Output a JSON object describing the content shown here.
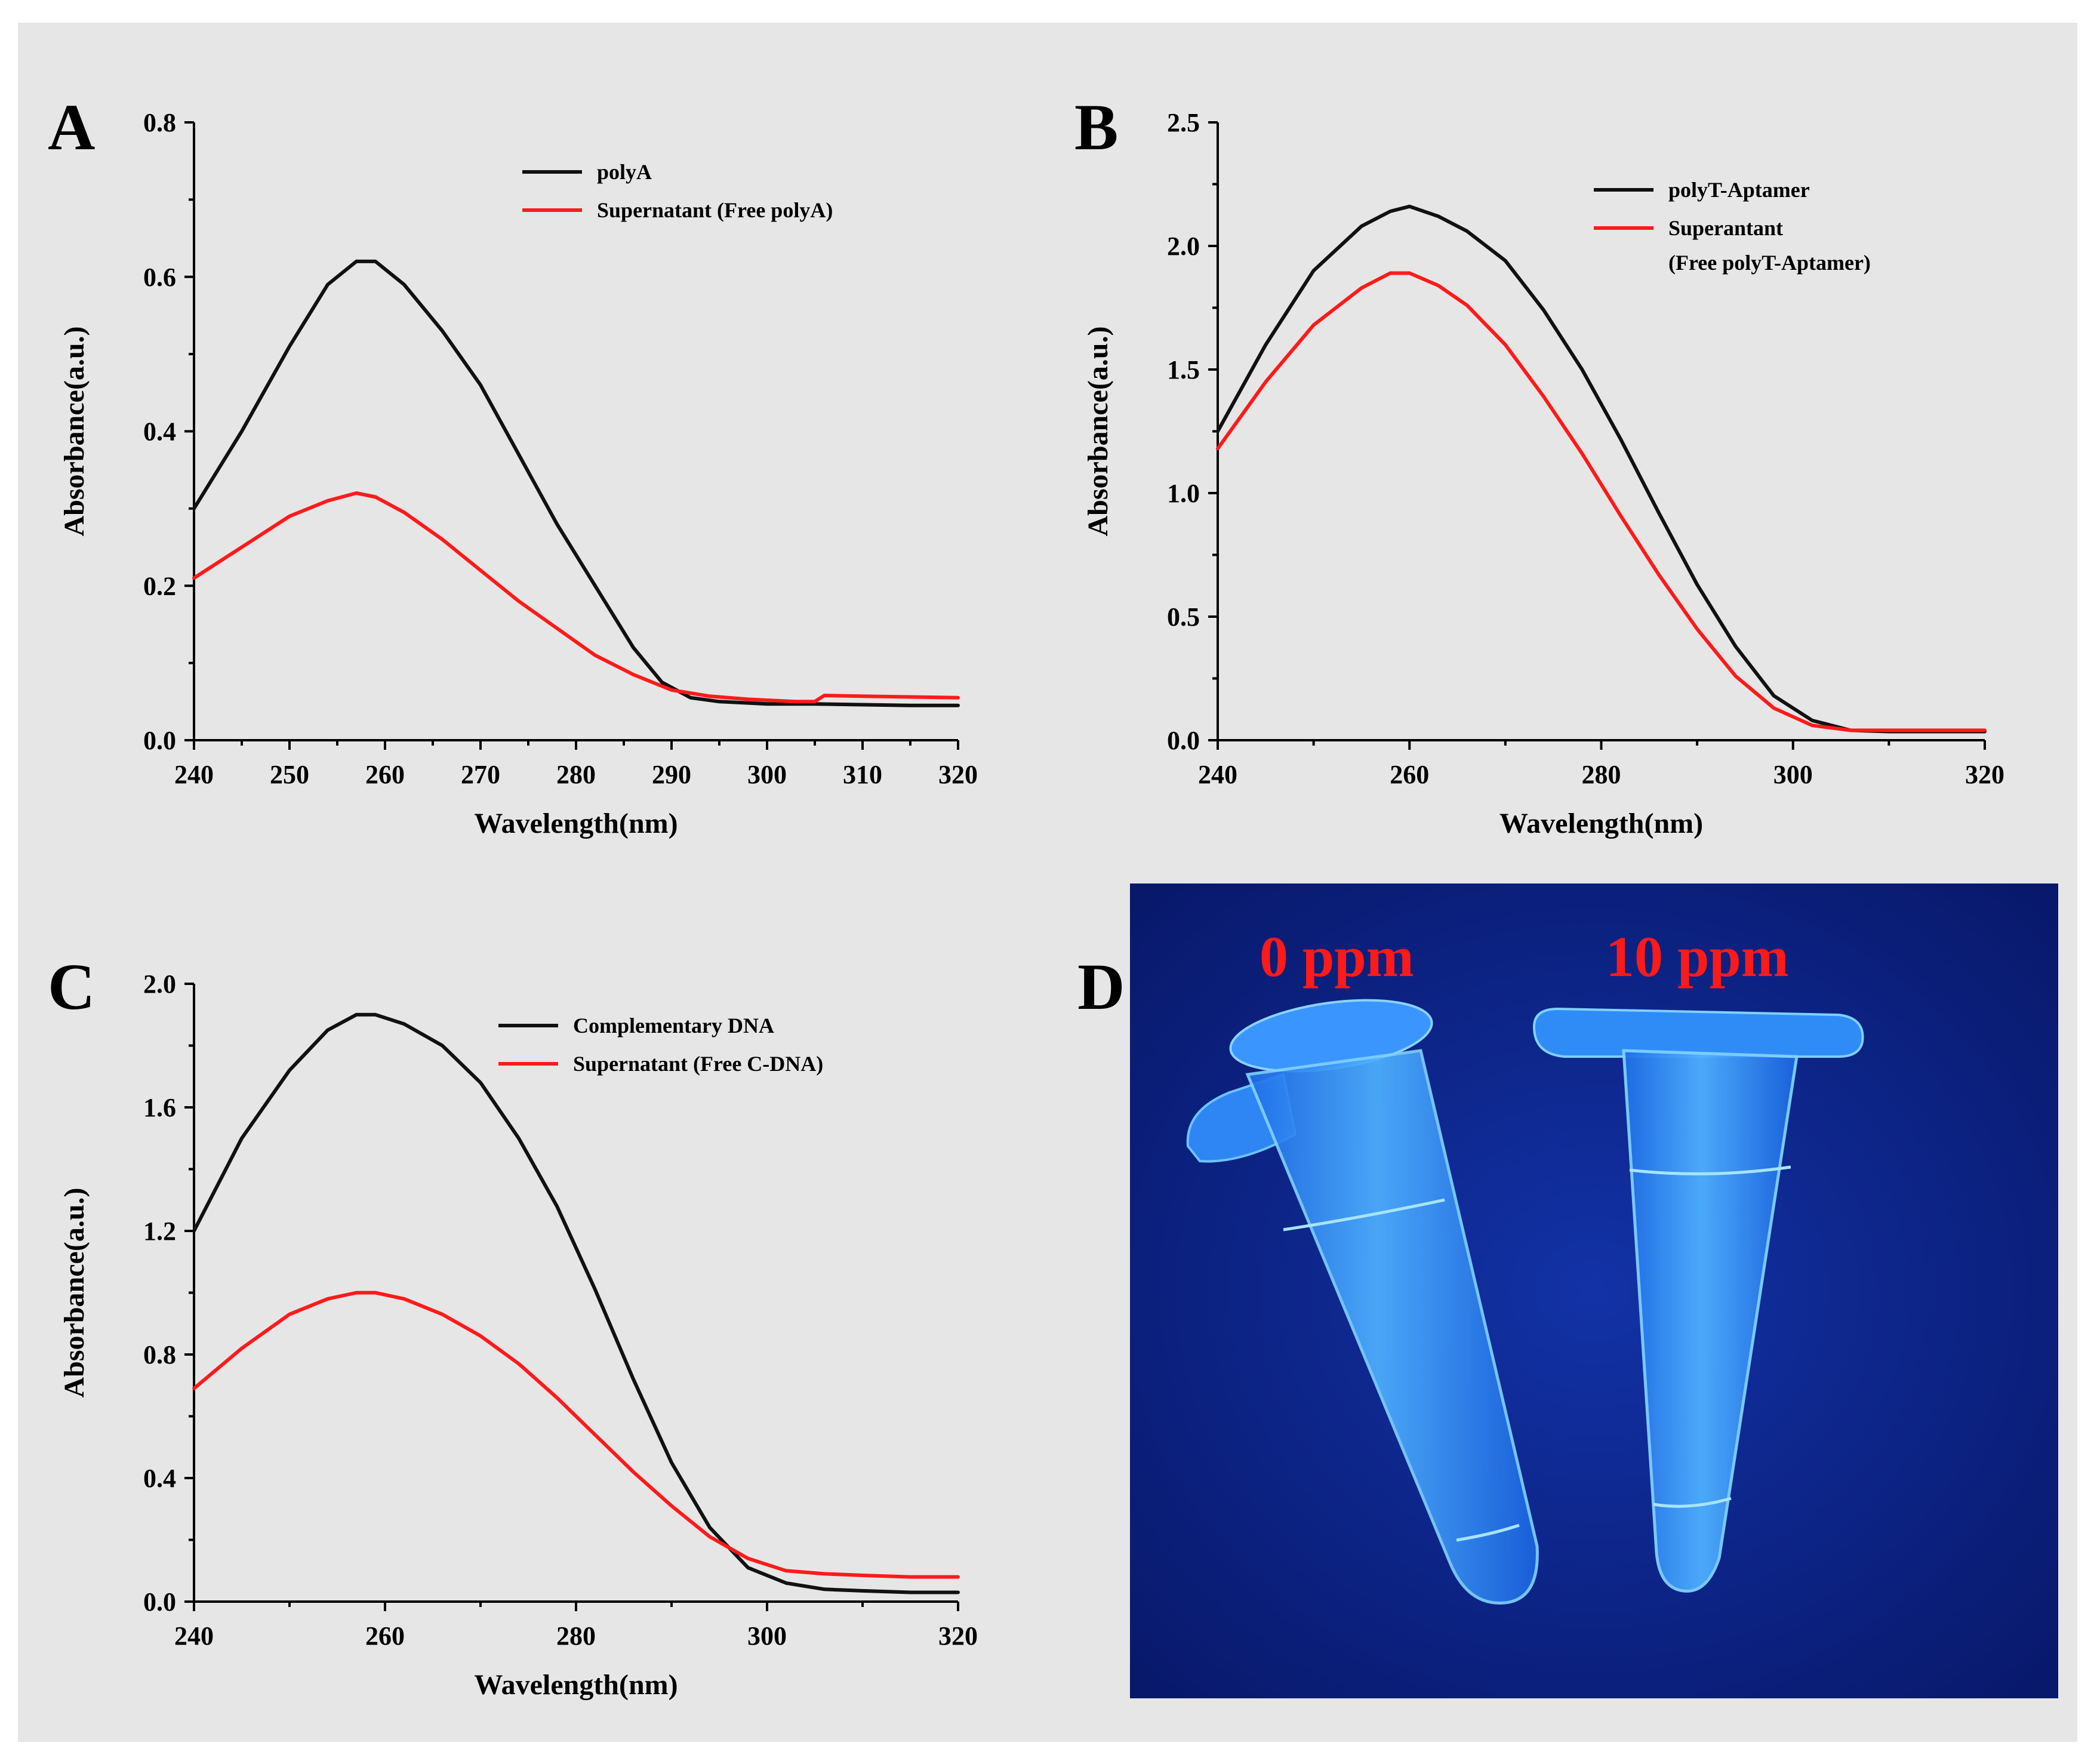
{
  "colors": {
    "background": "#e6e6e6",
    "series_black": "#111111",
    "series_red": "#ff1a1a",
    "photo_bg": "#0a1f7a",
    "tube": "#2f9bff"
  },
  "chart_data": [
    {
      "panel": "A",
      "type": "line",
      "title": "",
      "xlabel": "Wavelength(nm)",
      "ylabel": "Absorbance(a.u.)",
      "xlim": [
        240,
        320
      ],
      "ylim": [
        0,
        0.8
      ],
      "xticks": [
        240,
        250,
        260,
        270,
        280,
        290,
        300,
        310,
        320
      ],
      "yticks": [
        0.0,
        0.2,
        0.4,
        0.6,
        0.8
      ],
      "xtick_labels": [
        "240",
        "250",
        "260",
        "270",
        "280",
        "290",
        "300",
        "310",
        "320"
      ],
      "ytick_labels": [
        "0.0",
        "0.2",
        "0.4",
        "0.6",
        "0.8"
      ],
      "legend_position": "top-right",
      "series": [
        {
          "name": "polyA",
          "color": "#111111",
          "x": [
            240,
            245,
            250,
            254,
            257,
            259,
            262,
            266,
            270,
            274,
            278,
            282,
            286,
            289,
            292,
            295,
            300,
            305,
            310,
            315,
            320
          ],
          "y": [
            0.3,
            0.4,
            0.51,
            0.59,
            0.62,
            0.62,
            0.59,
            0.53,
            0.46,
            0.37,
            0.28,
            0.2,
            0.12,
            0.075,
            0.055,
            0.05,
            0.047,
            0.047,
            0.046,
            0.045,
            0.045
          ]
        },
        {
          "name": "Supernatant (Free polyA)",
          "color": "#ff1a1a",
          "x": [
            240,
            245,
            250,
            254,
            257,
            259,
            262,
            266,
            270,
            274,
            278,
            282,
            286,
            290,
            294,
            298,
            303,
            305,
            306,
            310,
            315,
            320
          ],
          "y": [
            0.21,
            0.25,
            0.29,
            0.31,
            0.32,
            0.315,
            0.295,
            0.26,
            0.22,
            0.18,
            0.145,
            0.11,
            0.085,
            0.065,
            0.057,
            0.053,
            0.05,
            0.05,
            0.058,
            0.057,
            0.056,
            0.055
          ]
        }
      ]
    },
    {
      "panel": "B",
      "type": "line",
      "title": "",
      "xlabel": "Wavelength(nm)",
      "ylabel": "Absorbance(a.u.)",
      "xlim": [
        240,
        320
      ],
      "ylim": [
        0,
        2.5
      ],
      "xticks": [
        240,
        260,
        280,
        300,
        320
      ],
      "yticks": [
        0.0,
        0.5,
        1.0,
        1.5,
        2.0,
        2.5
      ],
      "xtick_labels": [
        "240",
        "260",
        "280",
        "300",
        "320"
      ],
      "ytick_labels": [
        "0.0",
        "0.5",
        "1.0",
        "1.5",
        "2.0",
        "2.5"
      ],
      "legend_position": "top-right",
      "series": [
        {
          "name": "polyT-Aptamer",
          "color": "#111111",
          "x": [
            240,
            245,
            250,
            255,
            258,
            260,
            263,
            266,
            270,
            274,
            278,
            282,
            286,
            290,
            294,
            298,
            302,
            306,
            310,
            315,
            320
          ],
          "y": [
            1.25,
            1.6,
            1.9,
            2.08,
            2.14,
            2.16,
            2.12,
            2.06,
            1.94,
            1.74,
            1.5,
            1.22,
            0.92,
            0.63,
            0.38,
            0.18,
            0.08,
            0.04,
            0.035,
            0.035,
            0.035
          ]
        },
        {
          "name": "Superantant",
          "name_line2": "(Free polyT-Aptamer)",
          "color": "#ff1a1a",
          "x": [
            240,
            245,
            250,
            255,
            258,
            260,
            263,
            266,
            270,
            274,
            278,
            282,
            286,
            290,
            294,
            298,
            302,
            306,
            310,
            315,
            320
          ],
          "y": [
            1.18,
            1.45,
            1.68,
            1.83,
            1.89,
            1.89,
            1.84,
            1.76,
            1.6,
            1.39,
            1.16,
            0.91,
            0.67,
            0.45,
            0.26,
            0.13,
            0.06,
            0.04,
            0.04,
            0.04,
            0.04
          ]
        }
      ]
    },
    {
      "panel": "C",
      "type": "line",
      "title": "",
      "xlabel": "Wavelength(nm)",
      "ylabel": "Absorbance(a.u.)",
      "xlim": [
        240,
        320
      ],
      "ylim": [
        0,
        2.0
      ],
      "xticks": [
        240,
        260,
        280,
        300,
        320
      ],
      "yticks": [
        0.0,
        0.4,
        0.8,
        1.2,
        1.6,
        2.0
      ],
      "xtick_labels": [
        "240",
        "260",
        "280",
        "300",
        "320"
      ],
      "ytick_labels": [
        "0.0",
        "0.4",
        "0.8",
        "1.2",
        "1.6",
        "2.0"
      ],
      "legend_position": "top-right",
      "series": [
        {
          "name": "Complementary DNA",
          "color": "#111111",
          "x": [
            240,
            245,
            250,
            254,
            257,
            259,
            262,
            266,
            270,
            274,
            278,
            282,
            286,
            290,
            294,
            298,
            302,
            306,
            310,
            315,
            320
          ],
          "y": [
            1.2,
            1.5,
            1.72,
            1.85,
            1.9,
            1.9,
            1.87,
            1.8,
            1.68,
            1.5,
            1.28,
            1.01,
            0.72,
            0.45,
            0.24,
            0.11,
            0.06,
            0.04,
            0.035,
            0.03,
            0.03
          ]
        },
        {
          "name": "Supernatant (Free C-DNA)",
          "color": "#ff1a1a",
          "x": [
            240,
            245,
            250,
            254,
            257,
            259,
            262,
            266,
            270,
            274,
            278,
            282,
            286,
            290,
            294,
            298,
            302,
            306,
            310,
            315,
            320
          ],
          "y": [
            0.69,
            0.82,
            0.93,
            0.98,
            1.0,
            1.0,
            0.98,
            0.93,
            0.86,
            0.77,
            0.66,
            0.54,
            0.42,
            0.31,
            0.21,
            0.14,
            0.1,
            0.09,
            0.085,
            0.08,
            0.08
          ]
        }
      ]
    }
  ],
  "photo": {
    "panel": "D",
    "label_left": "0 ppm",
    "label_right": "10 ppm"
  }
}
